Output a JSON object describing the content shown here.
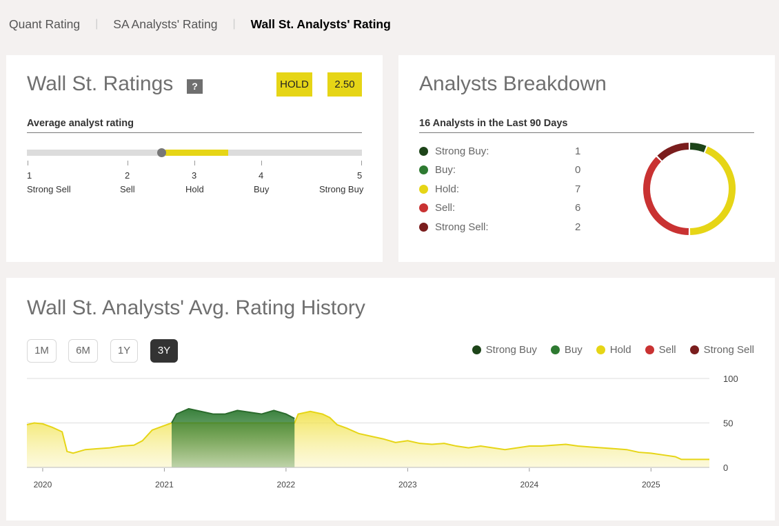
{
  "tabs": [
    "Quant Rating",
    "SA Analysts' Rating",
    "Wall St. Analysts' Rating"
  ],
  "ratings": {
    "title": "Wall St. Ratings",
    "help": "?",
    "rating_label": "HOLD",
    "rating_score": "2.50",
    "avg_heading": "Average analyst rating",
    "scale": [
      {
        "num": "1",
        "label": "Strong Sell"
      },
      {
        "num": "2",
        "label": "Sell"
      },
      {
        "num": "3",
        "label": "Hold"
      },
      {
        "num": "4",
        "label": "Buy"
      },
      {
        "num": "5",
        "label": "Strong Buy"
      }
    ],
    "avg_value": 2.5
  },
  "breakdown": {
    "title": "Analysts Breakdown",
    "heading": "16 Analysts in the Last 90 Days",
    "rows": [
      {
        "label": "Strong Buy:",
        "count": "1",
        "color": "#1d4419"
      },
      {
        "label": "Buy:",
        "count": "0",
        "color": "#2e7a31"
      },
      {
        "label": "Hold:",
        "count": "7",
        "color": "#e6d516"
      },
      {
        "label": "Sell:",
        "count": "6",
        "color": "#c93232"
      },
      {
        "label": "Strong Sell:",
        "count": "2",
        "color": "#7a1d1d"
      }
    ]
  },
  "history": {
    "title": "Wall St. Analysts' Avg. Rating History",
    "ranges": [
      "1M",
      "6M",
      "1Y",
      "3Y"
    ],
    "active_range": "3Y",
    "legend": [
      {
        "label": "Strong Buy",
        "color": "#1d4419"
      },
      {
        "label": "Buy",
        "color": "#2e7a31"
      },
      {
        "label": "Hold",
        "color": "#e6d516"
      },
      {
        "label": "Sell",
        "color": "#c93232"
      },
      {
        "label": "Strong Sell",
        "color": "#7a1d1d"
      }
    ]
  },
  "chart_data": {
    "type": "area",
    "y_ticks": [
      "100",
      "50",
      "0"
    ],
    "ylim": [
      0,
      100
    ],
    "x_ticks": [
      "2020",
      "2021",
      "2022",
      "2023",
      "2024",
      "2025"
    ],
    "x_domain": [
      2019.87,
      2025.48
    ],
    "series": [
      {
        "name": "Hold",
        "color": "#e6d516",
        "points": [
          [
            2019.87,
            48
          ],
          [
            2019.93,
            50
          ],
          [
            2020.0,
            49
          ],
          [
            2020.08,
            45
          ],
          [
            2020.16,
            40
          ],
          [
            2020.2,
            18
          ],
          [
            2020.25,
            16
          ],
          [
            2020.35,
            20
          ],
          [
            2020.45,
            21
          ],
          [
            2020.55,
            22
          ],
          [
            2020.65,
            24
          ],
          [
            2020.75,
            25
          ],
          [
            2020.82,
            30
          ],
          [
            2020.9,
            42
          ],
          [
            2021.0,
            47
          ],
          [
            2021.06,
            50
          ],
          [
            2022.07,
            50
          ],
          [
            2022.1,
            60
          ],
          [
            2022.2,
            63
          ],
          [
            2022.3,
            60
          ],
          [
            2022.36,
            56
          ],
          [
            2022.42,
            48
          ],
          [
            2022.5,
            44
          ],
          [
            2022.6,
            38
          ],
          [
            2022.7,
            35
          ],
          [
            2022.8,
            32
          ],
          [
            2022.9,
            28
          ],
          [
            2023.0,
            30
          ],
          [
            2023.1,
            27
          ],
          [
            2023.2,
            26
          ],
          [
            2023.3,
            27
          ],
          [
            2023.4,
            24
          ],
          [
            2023.5,
            22
          ],
          [
            2023.6,
            24
          ],
          [
            2023.7,
            22
          ],
          [
            2023.8,
            20
          ],
          [
            2023.9,
            22
          ],
          [
            2024.0,
            24
          ],
          [
            2024.1,
            24
          ],
          [
            2024.2,
            25
          ],
          [
            2024.3,
            26
          ],
          [
            2024.4,
            24
          ],
          [
            2024.5,
            23
          ],
          [
            2024.6,
            22
          ],
          [
            2024.7,
            21
          ],
          [
            2024.8,
            20
          ],
          [
            2024.9,
            17
          ],
          [
            2025.0,
            16
          ],
          [
            2025.1,
            14
          ],
          [
            2025.2,
            12
          ],
          [
            2025.25,
            9
          ],
          [
            2025.35,
            9
          ],
          [
            2025.48,
            9
          ]
        ]
      },
      {
        "name": "Buy",
        "color": "#2e7a31",
        "points": [
          [
            2021.06,
            50
          ],
          [
            2021.1,
            60
          ],
          [
            2021.2,
            66
          ],
          [
            2021.3,
            63
          ],
          [
            2021.4,
            60
          ],
          [
            2021.5,
            60
          ],
          [
            2021.6,
            64
          ],
          [
            2021.7,
            62
          ],
          [
            2021.8,
            60
          ],
          [
            2021.9,
            64
          ],
          [
            2022.0,
            60
          ],
          [
            2022.07,
            55
          ]
        ]
      }
    ]
  }
}
